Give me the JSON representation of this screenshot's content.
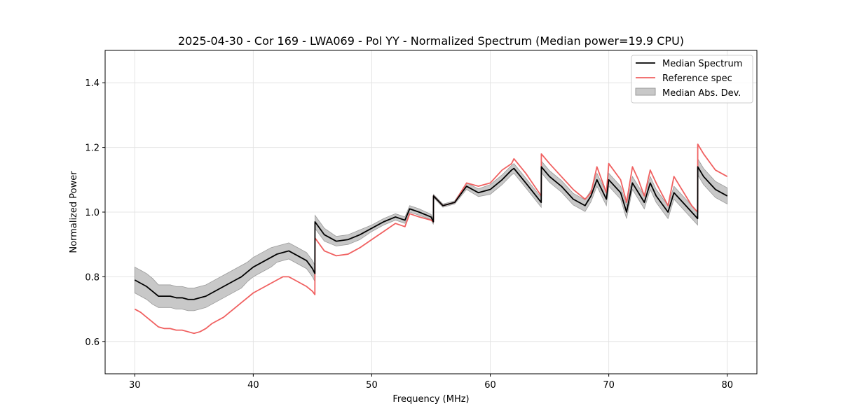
{
  "chart_data": {
    "type": "line",
    "title": "2025-04-30 - Cor 169 - LWA069 - Pol YY - Normalized Spectrum (Median power=19.9 CPU)",
    "xlabel": "Frequency (MHz)",
    "ylabel": "Normalized Power",
    "xlim": [
      27.5,
      82.5
    ],
    "ylim": [
      0.5,
      1.5
    ],
    "xticks": [
      30,
      40,
      50,
      60,
      70,
      80
    ],
    "yticks": [
      0.6,
      0.8,
      1.0,
      1.2,
      1.4
    ],
    "xtick_labels": [
      "30",
      "40",
      "50",
      "60",
      "70",
      "80"
    ],
    "ytick_labels": [
      "0.6",
      "0.8",
      "1.0",
      "1.2",
      "1.4"
    ],
    "grid": true,
    "legend_position": "top-right",
    "legend": [
      "Median Spectrum",
      "Reference spec",
      "Median Abs. Dev."
    ],
    "colors": {
      "median": "#000000",
      "reference": "#f06060",
      "mad": "#c8c8c8",
      "mad_edge": "#9a9a9a"
    },
    "series": [
      {
        "name": "Median Spectrum",
        "x": [
          30,
          30.5,
          31,
          31.5,
          32,
          32.5,
          33,
          33.5,
          34,
          34.5,
          35,
          35.5,
          36,
          36.5,
          37,
          37.5,
          38,
          38.5,
          39,
          39.5,
          40,
          40.5,
          41,
          41.5,
          42,
          42.5,
          43,
          43.5,
          44,
          44.5,
          45,
          45.2,
          45.21,
          46,
          47,
          48,
          49,
          50,
          51,
          52,
          52.8,
          53.2,
          54,
          55,
          55.2,
          55.21,
          56,
          57,
          58,
          59,
          60,
          61,
          61.8,
          62,
          63,
          64.3,
          64.31,
          65,
          66,
          67,
          68,
          68.5,
          69,
          69.8,
          70,
          71,
          71.5,
          72,
          72.5,
          73,
          73.5,
          74,
          75,
          75.5,
          76,
          77,
          77.5,
          77.51,
          78,
          79,
          80
        ],
        "y": [
          0.79,
          0.78,
          0.77,
          0.755,
          0.74,
          0.74,
          0.74,
          0.735,
          0.735,
          0.73,
          0.73,
          0.735,
          0.74,
          0.75,
          0.76,
          0.77,
          0.78,
          0.79,
          0.8,
          0.815,
          0.83,
          0.84,
          0.85,
          0.86,
          0.87,
          0.875,
          0.88,
          0.87,
          0.86,
          0.85,
          0.825,
          0.81,
          0.97,
          0.93,
          0.91,
          0.915,
          0.93,
          0.95,
          0.97,
          0.985,
          0.975,
          1.01,
          1.0,
          0.985,
          0.97,
          1.05,
          1.02,
          1.03,
          1.08,
          1.06,
          1.07,
          1.1,
          1.13,
          1.135,
          1.09,
          1.03,
          1.14,
          1.11,
          1.08,
          1.04,
          1.02,
          1.05,
          1.1,
          1.04,
          1.1,
          1.06,
          1.0,
          1.09,
          1.06,
          1.03,
          1.09,
          1.05,
          1.0,
          1.06,
          1.04,
          1.0,
          0.98,
          1.14,
          1.11,
          1.07,
          1.05
        ]
      },
      {
        "name": "Reference spec",
        "x": [
          30,
          30.5,
          31,
          31.5,
          32,
          32.5,
          33,
          33.5,
          34,
          34.5,
          35,
          35.5,
          36,
          36.5,
          37,
          37.5,
          38,
          38.5,
          39,
          39.5,
          40,
          40.5,
          41,
          41.5,
          42,
          42.5,
          43,
          43.5,
          44,
          44.5,
          45,
          45.2,
          45.21,
          46,
          47,
          48,
          49,
          50,
          51,
          52,
          52.8,
          53.2,
          54,
          55,
          55.2,
          55.21,
          56,
          57,
          58,
          59,
          60,
          61,
          61.8,
          62,
          63,
          64.3,
          64.31,
          65,
          66,
          67,
          68,
          68.5,
          69,
          69.8,
          70,
          71,
          71.5,
          72,
          72.5,
          73,
          73.5,
          74,
          75,
          75.5,
          76,
          77,
          77.5,
          77.51,
          78,
          79,
          80
        ],
        "y": [
          0.7,
          0.69,
          0.675,
          0.66,
          0.645,
          0.64,
          0.64,
          0.635,
          0.635,
          0.63,
          0.625,
          0.63,
          0.64,
          0.655,
          0.665,
          0.675,
          0.69,
          0.705,
          0.72,
          0.735,
          0.75,
          0.76,
          0.77,
          0.78,
          0.79,
          0.8,
          0.8,
          0.79,
          0.78,
          0.77,
          0.755,
          0.745,
          0.92,
          0.88,
          0.865,
          0.87,
          0.89,
          0.915,
          0.94,
          0.965,
          0.955,
          0.995,
          0.985,
          0.975,
          0.97,
          1.05,
          1.02,
          1.03,
          1.09,
          1.08,
          1.09,
          1.13,
          1.15,
          1.165,
          1.12,
          1.05,
          1.18,
          1.15,
          1.11,
          1.07,
          1.04,
          1.06,
          1.14,
          1.06,
          1.15,
          1.1,
          1.03,
          1.14,
          1.1,
          1.05,
          1.13,
          1.09,
          1.02,
          1.11,
          1.08,
          1.02,
          1.0,
          1.21,
          1.18,
          1.13,
          1.11
        ]
      },
      {
        "name": "Median Abs. Dev.",
        "x": [
          30,
          30.5,
          31,
          31.5,
          32,
          32.5,
          33,
          33.5,
          34,
          34.5,
          35,
          35.5,
          36,
          36.5,
          37,
          37.5,
          38,
          38.5,
          39,
          39.5,
          40,
          40.5,
          41,
          41.5,
          42,
          42.5,
          43,
          43.5,
          44,
          44.5,
          45,
          45.2,
          45.21,
          46,
          47,
          48,
          49,
          50,
          51,
          52,
          52.8,
          53.2,
          54,
          55,
          55.2,
          55.21,
          56,
          57,
          58,
          59,
          60,
          61,
          61.8,
          62,
          63,
          64.3,
          64.31,
          65,
          66,
          67,
          68,
          68.5,
          69,
          69.8,
          70,
          71,
          71.5,
          72,
          72.5,
          73,
          73.5,
          74,
          75,
          75.5,
          76,
          77,
          77.5,
          77.51,
          78,
          79,
          80
        ],
        "dev": [
          0.04,
          0.04,
          0.04,
          0.04,
          0.035,
          0.035,
          0.035,
          0.035,
          0.035,
          0.035,
          0.035,
          0.035,
          0.035,
          0.035,
          0.035,
          0.035,
          0.035,
          0.035,
          0.035,
          0.03,
          0.03,
          0.03,
          0.03,
          0.03,
          0.025,
          0.025,
          0.025,
          0.025,
          0.025,
          0.025,
          0.025,
          0.025,
          0.02,
          0.02,
          0.015,
          0.015,
          0.015,
          0.01,
          0.01,
          0.01,
          0.01,
          0.01,
          0.01,
          0.008,
          0.008,
          0.005,
          0.005,
          0.005,
          0.01,
          0.012,
          0.015,
          0.015,
          0.015,
          0.015,
          0.015,
          0.015,
          0.018,
          0.018,
          0.018,
          0.018,
          0.018,
          0.018,
          0.02,
          0.02,
          0.02,
          0.02,
          0.02,
          0.02,
          0.02,
          0.02,
          0.02,
          0.02,
          0.02,
          0.02,
          0.02,
          0.02,
          0.02,
          0.025,
          0.025,
          0.025,
          0.025
        ]
      }
    ]
  }
}
